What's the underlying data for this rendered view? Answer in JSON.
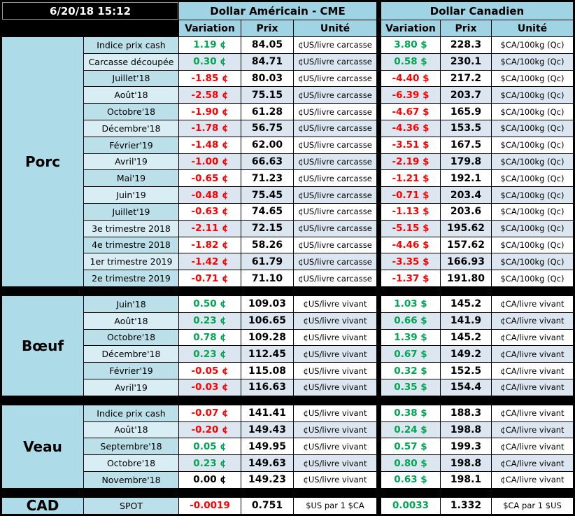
{
  "meta": {
    "timestamp": "6/20/18 15:12"
  },
  "columns": {
    "group_us": "Dollar Américain - CME",
    "group_ca": "Dollar Canadien",
    "variation": "Variation",
    "prix": "Prix",
    "unite": "Unité"
  },
  "colors": {
    "up": "#00A651",
    "down": "#FF0000",
    "flat": "#000000",
    "header_bg": "#A0D3E3",
    "section_bg": "#AEDBE8",
    "label_odd": "#BCE0EA",
    "label_even": "#D8EDF4",
    "data_odd": "#FFFFFF",
    "data_even": "#DCE6F1"
  },
  "sections": [
    {
      "name": "Porc",
      "us_unit": "¢US/livre carcasse",
      "ca_unit": "$CA/100kg (Qc)",
      "rows": [
        {
          "label": "Indice prix cash",
          "us_var": "1.19 ¢",
          "us_dir": "up",
          "us_prix": "84.05",
          "ca_var": "3.80 $",
          "ca_dir": "up",
          "ca_prix": "228.3"
        },
        {
          "label": "Carcasse découpée",
          "us_var": "0.30 ¢",
          "us_dir": "up",
          "us_prix": "84.71",
          "ca_var": "0.58 $",
          "ca_dir": "up",
          "ca_prix": "230.1"
        },
        {
          "label": "Juillet'18",
          "us_var": "-1.85 ¢",
          "us_dir": "down",
          "us_prix": "80.03",
          "ca_var": "-4.40 $",
          "ca_dir": "down",
          "ca_prix": "217.2"
        },
        {
          "label": "Août'18",
          "us_var": "-2.58 ¢",
          "us_dir": "down",
          "us_prix": "75.15",
          "ca_var": "-6.39 $",
          "ca_dir": "down",
          "ca_prix": "203.7"
        },
        {
          "label": "Octobre'18",
          "us_var": "-1.90 ¢",
          "us_dir": "down",
          "us_prix": "61.28",
          "ca_var": "-4.67 $",
          "ca_dir": "down",
          "ca_prix": "165.9"
        },
        {
          "label": "Décembre'18",
          "us_var": "-1.78 ¢",
          "us_dir": "down",
          "us_prix": "56.75",
          "ca_var": "-4.36 $",
          "ca_dir": "down",
          "ca_prix": "153.5"
        },
        {
          "label": "Février'19",
          "us_var": "-1.48 ¢",
          "us_dir": "down",
          "us_prix": "62.00",
          "ca_var": "-3.51 $",
          "ca_dir": "down",
          "ca_prix": "167.5"
        },
        {
          "label": "Avril'19",
          "us_var": "-1.00 ¢",
          "us_dir": "down",
          "us_prix": "66.63",
          "ca_var": "-2.19 $",
          "ca_dir": "down",
          "ca_prix": "179.8"
        },
        {
          "label": "Mai'19",
          "us_var": "-0.65 ¢",
          "us_dir": "down",
          "us_prix": "71.23",
          "ca_var": "-1.21 $",
          "ca_dir": "down",
          "ca_prix": "192.1"
        },
        {
          "label": "Juin'19",
          "us_var": "-0.48 ¢",
          "us_dir": "down",
          "us_prix": "75.45",
          "ca_var": "-0.71 $",
          "ca_dir": "down",
          "ca_prix": "203.4"
        },
        {
          "label": "Juillet'19",
          "us_var": "-0.63 ¢",
          "us_dir": "down",
          "us_prix": "74.65",
          "ca_var": "-1.13 $",
          "ca_dir": "down",
          "ca_prix": "203.6"
        },
        {
          "label": "3e trimestre 2018",
          "us_var": "-2.11 ¢",
          "us_dir": "down",
          "us_prix": "72.15",
          "ca_var": "-5.15 $",
          "ca_dir": "down",
          "ca_prix": "195.62"
        },
        {
          "label": "4e trimestre 2018",
          "us_var": "-1.82 ¢",
          "us_dir": "down",
          "us_prix": "58.26",
          "ca_var": "-4.46 $",
          "ca_dir": "down",
          "ca_prix": "157.62"
        },
        {
          "label": "1er trimestre 2019",
          "us_var": "-1.42 ¢",
          "us_dir": "down",
          "us_prix": "61.79",
          "ca_var": "-3.35 $",
          "ca_dir": "down",
          "ca_prix": "166.93"
        },
        {
          "label": "2e trimestre 2019",
          "us_var": "-0.71 ¢",
          "us_dir": "down",
          "us_prix": "71.10",
          "ca_var": "-1.37 $",
          "ca_dir": "down",
          "ca_prix": "191.80"
        }
      ]
    },
    {
      "name": "Bœuf",
      "us_unit": "¢US/livre vivant",
      "ca_unit": "¢CA/livre vivant",
      "rows": [
        {
          "label": "Juin'18",
          "us_var": "0.50 ¢",
          "us_dir": "up",
          "us_prix": "109.03",
          "ca_var": "1.03 $",
          "ca_dir": "up",
          "ca_prix": "145.2"
        },
        {
          "label": "Août'18",
          "us_var": "0.23 ¢",
          "us_dir": "up",
          "us_prix": "106.65",
          "ca_var": "0.66 $",
          "ca_dir": "up",
          "ca_prix": "141.9"
        },
        {
          "label": "Octobre'18",
          "us_var": "0.78 ¢",
          "us_dir": "up",
          "us_prix": "109.28",
          "ca_var": "1.39 $",
          "ca_dir": "up",
          "ca_prix": "145.2"
        },
        {
          "label": "Décembre'18",
          "us_var": "0.23 ¢",
          "us_dir": "up",
          "us_prix": "112.45",
          "ca_var": "0.67 $",
          "ca_dir": "up",
          "ca_prix": "149.2"
        },
        {
          "label": "Février'19",
          "us_var": "-0.05 ¢",
          "us_dir": "down",
          "us_prix": "115.08",
          "ca_var": "0.32 $",
          "ca_dir": "up",
          "ca_prix": "152.5"
        },
        {
          "label": "Avril'19",
          "us_var": "-0.03 ¢",
          "us_dir": "down",
          "us_prix": "116.63",
          "ca_var": "0.35 $",
          "ca_dir": "up",
          "ca_prix": "154.4"
        }
      ]
    },
    {
      "name": "Veau",
      "us_unit": "¢US/livre vivant",
      "ca_unit": "¢CA/livre vivant",
      "rows": [
        {
          "label": "Indice prix cash",
          "us_var": "-0.07 ¢",
          "us_dir": "down",
          "us_prix": "141.41",
          "ca_var": "0.38 $",
          "ca_dir": "up",
          "ca_prix": "188.3"
        },
        {
          "label": "Août'18",
          "us_var": "-0.20 ¢",
          "us_dir": "down",
          "us_prix": "149.43",
          "ca_var": "0.24 $",
          "ca_dir": "up",
          "ca_prix": "198.8"
        },
        {
          "label": "Septembre'18",
          "us_var": "0.05 ¢",
          "us_dir": "up",
          "us_prix": "149.95",
          "ca_var": "0.57 $",
          "ca_dir": "up",
          "ca_prix": "199.3"
        },
        {
          "label": "Octobre'18",
          "us_var": "0.23 ¢",
          "us_dir": "up",
          "us_prix": "149.63",
          "ca_var": "0.80 $",
          "ca_dir": "up",
          "ca_prix": "198.8"
        },
        {
          "label": "Novembre'18",
          "us_var": "0.00 ¢",
          "us_dir": "flat",
          "us_prix": "149.23",
          "ca_var": "0.63 $",
          "ca_dir": "up",
          "ca_prix": "198.1"
        }
      ]
    },
    {
      "name": "CAD",
      "us_unit": "$US par 1 $CA",
      "ca_unit": "$CA par 1 $US",
      "rows": [
        {
          "label": "SPOT",
          "us_var": "-0.0019",
          "us_dir": "down",
          "us_prix": "0.751",
          "ca_var": "0.0033",
          "ca_dir": "up",
          "ca_prix": "1.332"
        }
      ]
    }
  ]
}
